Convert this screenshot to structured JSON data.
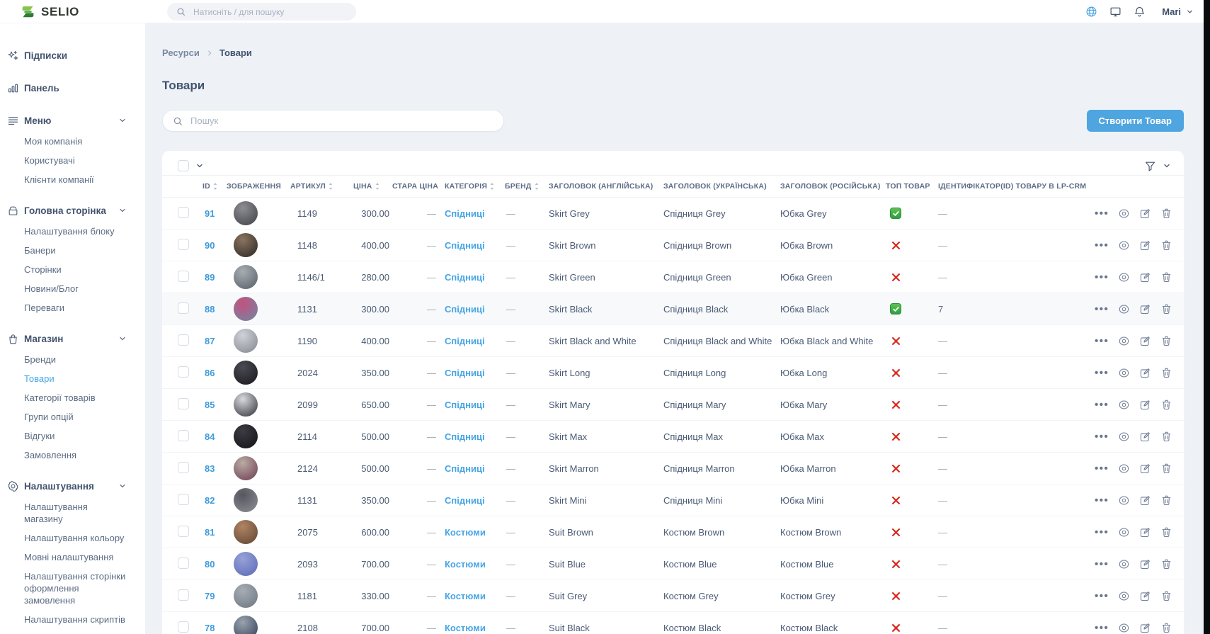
{
  "colors": {
    "accent_blue": "#4fa5e0",
    "link_blue": "#3e9bdc",
    "success_green": "#2f9e3f",
    "danger_red": "#d9291c"
  },
  "topbar": {
    "logo_text": "SELIO",
    "search_placeholder": "Натисніть / для пошуку",
    "icons": [
      "globe-icon",
      "monitor-icon",
      "bell-icon"
    ],
    "user_name": "Mari"
  },
  "sidebar": {
    "sections": [
      {
        "key": "subscriptions",
        "icon": "sparkles-icon",
        "label": "Підписки",
        "expandable": false
      },
      {
        "key": "dashboard",
        "icon": "bar-chart-icon",
        "label": "Панель",
        "expandable": false
      },
      {
        "key": "menu",
        "icon": "menu-icon",
        "label": "Меню",
        "expandable": true,
        "children": [
          {
            "key": "my-company",
            "label": "Моя компанія"
          },
          {
            "key": "users",
            "label": "Користувачі"
          },
          {
            "key": "company-clients",
            "label": "Клієнти компанії"
          }
        ]
      },
      {
        "key": "homepage",
        "icon": "archive-box-icon",
        "label": "Головна сторінка",
        "expandable": true,
        "children": [
          {
            "key": "block-settings",
            "label": "Налаштування блоку"
          },
          {
            "key": "banners",
            "label": "Банери"
          },
          {
            "key": "pages",
            "label": "Сторінки"
          },
          {
            "key": "news-blog",
            "label": "Новини/Блог"
          },
          {
            "key": "benefits",
            "label": "Переваги"
          }
        ]
      },
      {
        "key": "shop",
        "icon": "shopping-bag-icon",
        "label": "Магазин",
        "expandable": true,
        "children": [
          {
            "key": "brands",
            "label": "Бренди"
          },
          {
            "key": "products",
            "label": "Товари",
            "active": true
          },
          {
            "key": "product-categories",
            "label": "Категорії товарів"
          },
          {
            "key": "option-groups",
            "label": "Групи опцій"
          },
          {
            "key": "reviews",
            "label": "Відгуки"
          },
          {
            "key": "orders",
            "label": "Замовлення"
          }
        ]
      },
      {
        "key": "settings",
        "icon": "gear-icon",
        "label": "Налаштування",
        "expandable": true,
        "children": [
          {
            "key": "shop-settings",
            "label": "Налаштування магазину"
          },
          {
            "key": "color-settings",
            "label": "Налаштування кольору"
          },
          {
            "key": "language-settings",
            "label": "Мовні налаштування"
          },
          {
            "key": "checkout-page-settings",
            "label": "Налаштування сторінки оформлення замовлення"
          },
          {
            "key": "scripts-settings",
            "label": "Налаштування скриптів"
          }
        ]
      }
    ]
  },
  "main": {
    "breadcrumb": {
      "root": "Ресурси",
      "current": "Товари"
    },
    "title": "Товари",
    "search_placeholder": "Пошук",
    "create_button_label": "Створити Товар",
    "table": {
      "columns": [
        {
          "key": "id",
          "label": "ID",
          "sortable": true
        },
        {
          "key": "image",
          "label": "ЗОБРАЖЕННЯ",
          "sortable": false
        },
        {
          "key": "sku",
          "label": "АРТИКУЛ",
          "sortable": true
        },
        {
          "key": "price",
          "label": "ЦІНА",
          "sortable": true
        },
        {
          "key": "old-price",
          "label": "СТАРА ЦІНА",
          "sortable": false
        },
        {
          "key": "category",
          "label": "КАТЕГОРІЯ",
          "sortable": true
        },
        {
          "key": "brand",
          "label": "БРЕНД",
          "sortable": true
        },
        {
          "key": "title-en",
          "label": "ЗАГОЛОВОК (АНГЛІЙСЬКА)",
          "sortable": false
        },
        {
          "key": "title-uk",
          "label": "ЗАГОЛОВОК (УКРАЇНСЬКА)",
          "sortable": false
        },
        {
          "key": "title-ru",
          "label": "ЗАГОЛОВОК (РОСІЙСЬКА)",
          "sortable": false
        },
        {
          "key": "top-product",
          "label": "ТОП ТОВАР",
          "sortable": false
        },
        {
          "key": "lp-crm-id",
          "label": "ІДЕНТИФІКАТОР(ID) ТОВАРУ В LP-CRM",
          "sortable": false
        }
      ],
      "rows": [
        {
          "id": "91",
          "sku": "1149",
          "price": "300.00",
          "old_price": "—",
          "category": "Спідниці",
          "brand": "—",
          "title_en": "Skirt Grey",
          "title_uk": "Спідниця Grey",
          "title_ru": "Юбка Grey",
          "top_product": true,
          "lp_crm_id": "—",
          "avatar_colors": [
            "#8d8d93",
            "#3f3f46"
          ]
        },
        {
          "id": "90",
          "sku": "1148",
          "price": "400.00",
          "old_price": "—",
          "category": "Спідниці",
          "brand": "—",
          "title_en": "Skirt Brown",
          "title_uk": "Спідниця Brown",
          "title_ru": "Юбка Brown",
          "top_product": false,
          "lp_crm_id": "—",
          "avatar_colors": [
            "#8a7460",
            "#2b2622"
          ]
        },
        {
          "id": "89",
          "sku": "1146/1",
          "price": "280.00",
          "old_price": "—",
          "category": "Спідниці",
          "brand": "—",
          "title_en": "Skirt Green",
          "title_uk": "Спідниця Green",
          "title_ru": "Юбка Green",
          "top_product": false,
          "lp_crm_id": "—",
          "avatar_colors": [
            "#a7adb3",
            "#565e66"
          ]
        },
        {
          "id": "88",
          "sku": "1131",
          "price": "300.00",
          "old_price": "—",
          "category": "Спідниці",
          "brand": "—",
          "title_en": "Skirt Black",
          "title_uk": "Спідниця Black",
          "title_ru": "Юбка Black",
          "top_product": true,
          "lp_crm_id": "7",
          "highlighted": true,
          "avatar_colors": [
            "#c2527f",
            "#6f88a4"
          ]
        },
        {
          "id": "87",
          "sku": "1190",
          "price": "400.00",
          "old_price": "—",
          "category": "Спідниці",
          "brand": "—",
          "title_en": "Skirt Black and White",
          "title_uk": "Спідниця Black and White",
          "title_ru": "Юбка Black and White",
          "top_product": false,
          "lp_crm_id": "—",
          "avatar_colors": [
            "#cfd2d8",
            "#83868e"
          ]
        },
        {
          "id": "86",
          "sku": "2024",
          "price": "350.00",
          "old_price": "—",
          "category": "Спідниці",
          "brand": "—",
          "title_en": "Skirt Long",
          "title_uk": "Спідниця Long",
          "title_ru": "Юбка Long",
          "top_product": false,
          "lp_crm_id": "—",
          "avatar_colors": [
            "#4a4a52",
            "#17171c"
          ]
        },
        {
          "id": "85",
          "sku": "2099",
          "price": "650.00",
          "old_price": "—",
          "category": "Спідниці",
          "brand": "—",
          "title_en": "Skirt Mary",
          "title_uk": "Спідниця Mary",
          "title_ru": "Юбка Mary",
          "top_product": false,
          "lp_crm_id": "—",
          "avatar_colors": [
            "#d9dadf",
            "#2e2e36"
          ]
        },
        {
          "id": "84",
          "sku": "2114",
          "price": "500.00",
          "old_price": "—",
          "category": "Спідниці",
          "brand": "—",
          "title_en": "Skirt Max",
          "title_uk": "Спідниця Max",
          "title_ru": "Юбка Max",
          "top_product": false,
          "lp_crm_id": "—",
          "avatar_colors": [
            "#3b3b42",
            "#121216"
          ]
        },
        {
          "id": "83",
          "sku": "2124",
          "price": "500.00",
          "old_price": "—",
          "category": "Спідниці",
          "brand": "—",
          "title_en": "Skirt Marron",
          "title_uk": "Спідниця Marron",
          "title_ru": "Юбка Marron",
          "top_product": false,
          "lp_crm_id": "—",
          "avatar_colors": [
            "#b9aca2",
            "#6d3a52"
          ]
        },
        {
          "id": "82",
          "sku": "1131",
          "price": "350.00",
          "old_price": "—",
          "category": "Спідниці",
          "brand": "—",
          "title_en": "Skirt Mini",
          "title_uk": "Спідниця Mini",
          "title_ru": "Юбка Mini",
          "top_product": false,
          "lp_crm_id": "—",
          "avatar_colors": [
            "#56565e",
            "#8f8f97"
          ]
        },
        {
          "id": "81",
          "sku": "2075",
          "price": "600.00",
          "old_price": "—",
          "category": "Костюми",
          "brand": "—",
          "title_en": "Suit Brown",
          "title_uk": "Костюм Brown",
          "title_ru": "Костюм Brown",
          "top_product": false,
          "lp_crm_id": "—",
          "avatar_colors": [
            "#b08463",
            "#5e4332"
          ]
        },
        {
          "id": "80",
          "sku": "2093",
          "price": "700.00",
          "old_price": "—",
          "category": "Костюми",
          "brand": "—",
          "title_en": "Suit Blue",
          "title_uk": "Костюм Blue",
          "title_ru": "Костюм Blue",
          "top_product": false,
          "lp_crm_id": "—",
          "avatar_colors": [
            "#97a2d8",
            "#5a68b5"
          ]
        },
        {
          "id": "79",
          "sku": "1181",
          "price": "330.00",
          "old_price": "—",
          "category": "Костюми",
          "brand": "—",
          "title_en": "Suit Grey",
          "title_uk": "Костюм Grey",
          "title_ru": "Костюм Grey",
          "top_product": false,
          "lp_crm_id": "—",
          "avatar_colors": [
            "#a6adb5",
            "#6b747e"
          ]
        },
        {
          "id": "78",
          "sku": "2108",
          "price": "700.00",
          "old_price": "—",
          "category": "Костюми",
          "brand": "—",
          "title_en": "Suit Black",
          "title_uk": "Костюм Black",
          "title_ru": "Костюм Black",
          "top_product": false,
          "lp_crm_id": "—",
          "avatar_colors": [
            "#9aa3ad",
            "#2e3c55"
          ]
        }
      ]
    }
  }
}
